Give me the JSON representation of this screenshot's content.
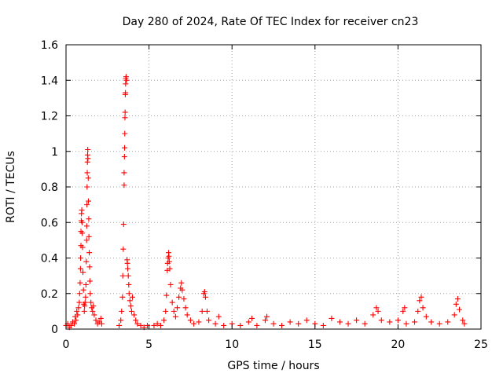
{
  "chart_data": {
    "type": "scatter",
    "title": "Day 280 of 2024, Rate Of TEC Index for receiver cn23",
    "xlabel": "GPS time / hours",
    "ylabel": "ROTI / TECUs",
    "xlim": [
      0,
      25
    ],
    "ylim": [
      0,
      1.6
    ],
    "xticks": [
      0,
      5,
      10,
      15,
      20,
      25
    ],
    "yticks": [
      0,
      0.2,
      0.4,
      0.6,
      0.8,
      1,
      1.2,
      1.4,
      1.6
    ],
    "xtick_labels": [
      "0",
      "5",
      "10",
      "15",
      "20",
      "25"
    ],
    "ytick_labels": [
      "0",
      "0.2",
      "0.4",
      "0.6",
      "0.8",
      "1",
      "1.2",
      "1.4",
      "1.6"
    ],
    "grid": true,
    "legend": "none",
    "marker": "plus",
    "color": "#ff0000",
    "series": [
      {
        "points": [
          [
            0.0,
            0.02
          ],
          [
            0.1,
            0.03
          ],
          [
            0.2,
            0.01
          ],
          [
            0.3,
            0.02
          ],
          [
            0.4,
            0.04
          ],
          [
            0.5,
            0.03
          ],
          [
            0.55,
            0.07
          ],
          [
            0.6,
            0.05
          ],
          [
            0.65,
            0.1
          ],
          [
            0.7,
            0.08
          ],
          [
            0.75,
            0.12
          ],
          [
            0.8,
            0.15
          ],
          [
            0.82,
            0.2
          ],
          [
            0.85,
            0.26
          ],
          [
            0.87,
            0.34
          ],
          [
            0.88,
            0.4
          ],
          [
            0.9,
            0.47
          ],
          [
            0.9,
            0.55
          ],
          [
            0.92,
            0.61
          ],
          [
            0.93,
            0.65
          ],
          [
            0.95,
            0.67
          ],
          [
            0.97,
            0.6
          ],
          [
            0.98,
            0.54
          ],
          [
            1.0,
            0.46
          ],
          [
            1.02,
            0.32
          ],
          [
            1.05,
            0.22
          ],
          [
            1.08,
            0.14
          ],
          [
            1.1,
            0.1
          ],
          [
            1.12,
            0.13
          ],
          [
            1.15,
            0.15
          ],
          [
            1.18,
            0.18
          ],
          [
            1.2,
            0.25
          ],
          [
            1.22,
            0.38
          ],
          [
            1.24,
            0.5
          ],
          [
            1.25,
            0.58
          ],
          [
            1.26,
            0.7
          ],
          [
            1.27,
            0.8
          ],
          [
            1.28,
            0.88
          ],
          [
            1.29,
            0.94
          ],
          [
            1.3,
            0.98
          ],
          [
            1.31,
            1.01
          ],
          [
            1.32,
            0.96
          ],
          [
            1.34,
            0.85
          ],
          [
            1.35,
            0.72
          ],
          [
            1.37,
            0.62
          ],
          [
            1.38,
            0.52
          ],
          [
            1.4,
            0.43
          ],
          [
            1.42,
            0.35
          ],
          [
            1.44,
            0.27
          ],
          [
            1.46,
            0.2
          ],
          [
            1.5,
            0.15
          ],
          [
            1.55,
            0.12
          ],
          [
            1.6,
            0.1
          ],
          [
            1.65,
            0.13
          ],
          [
            1.7,
            0.08
          ],
          [
            1.8,
            0.05
          ],
          [
            1.9,
            0.03
          ],
          [
            2.0,
            0.04
          ],
          [
            2.1,
            0.06
          ],
          [
            2.15,
            0.03
          ],
          [
            3.2,
            0.02
          ],
          [
            3.3,
            0.05
          ],
          [
            3.35,
            0.1
          ],
          [
            3.4,
            0.18
          ],
          [
            3.42,
            0.3
          ],
          [
            3.45,
            0.45
          ],
          [
            3.47,
            0.59
          ],
          [
            3.5,
            0.81
          ],
          [
            3.5,
            0.88
          ],
          [
            3.52,
            0.97
          ],
          [
            3.53,
            1.02
          ],
          [
            3.54,
            1.1
          ],
          [
            3.55,
            1.19
          ],
          [
            3.56,
            1.22
          ],
          [
            3.57,
            1.32
          ],
          [
            3.58,
            1.33
          ],
          [
            3.59,
            1.38
          ],
          [
            3.6,
            1.41
          ],
          [
            3.62,
            1.42
          ],
          [
            3.65,
            1.4
          ],
          [
            3.68,
            0.39
          ],
          [
            3.7,
            0.37
          ],
          [
            3.72,
            0.34
          ],
          [
            3.75,
            0.3
          ],
          [
            3.78,
            0.25
          ],
          [
            3.8,
            0.2
          ],
          [
            3.85,
            0.16
          ],
          [
            3.9,
            0.13
          ],
          [
            3.95,
            0.1
          ],
          [
            4.0,
            0.18
          ],
          [
            4.1,
            0.08
          ],
          [
            4.2,
            0.05
          ],
          [
            4.3,
            0.03
          ],
          [
            4.5,
            0.02
          ],
          [
            4.7,
            0.01
          ],
          [
            4.9,
            0.02
          ],
          [
            5.3,
            0.02
          ],
          [
            5.5,
            0.03
          ],
          [
            5.7,
            0.02
          ],
          [
            5.9,
            0.05
          ],
          [
            6.0,
            0.1
          ],
          [
            6.05,
            0.19
          ],
          [
            6.1,
            0.33
          ],
          [
            6.12,
            0.37
          ],
          [
            6.15,
            0.4
          ],
          [
            6.18,
            0.43
          ],
          [
            6.2,
            0.41
          ],
          [
            6.22,
            0.38
          ],
          [
            6.25,
            0.34
          ],
          [
            6.3,
            0.25
          ],
          [
            6.4,
            0.15
          ],
          [
            6.5,
            0.1
          ],
          [
            6.6,
            0.07
          ],
          [
            6.7,
            0.12
          ],
          [
            6.8,
            0.18
          ],
          [
            6.9,
            0.23
          ],
          [
            6.95,
            0.26
          ],
          [
            7.0,
            0.22
          ],
          [
            7.1,
            0.17
          ],
          [
            7.2,
            0.12
          ],
          [
            7.3,
            0.08
          ],
          [
            7.5,
            0.05
          ],
          [
            7.7,
            0.03
          ],
          [
            8.0,
            0.04
          ],
          [
            8.2,
            0.1
          ],
          [
            8.3,
            0.2
          ],
          [
            8.35,
            0.21
          ],
          [
            8.4,
            0.18
          ],
          [
            8.5,
            0.1
          ],
          [
            8.6,
            0.05
          ],
          [
            9.0,
            0.03
          ],
          [
            9.2,
            0.07
          ],
          [
            9.5,
            0.02
          ],
          [
            10.0,
            0.03
          ],
          [
            10.5,
            0.02
          ],
          [
            11.0,
            0.04
          ],
          [
            11.2,
            0.06
          ],
          [
            11.5,
            0.02
          ],
          [
            12.0,
            0.05
          ],
          [
            12.1,
            0.07
          ],
          [
            12.5,
            0.03
          ],
          [
            13.0,
            0.02
          ],
          [
            13.5,
            0.04
          ],
          [
            14.0,
            0.03
          ],
          [
            14.5,
            0.05
          ],
          [
            15.0,
            0.03
          ],
          [
            15.5,
            0.02
          ],
          [
            16.0,
            0.06
          ],
          [
            16.5,
            0.04
          ],
          [
            17.0,
            0.03
          ],
          [
            17.5,
            0.05
          ],
          [
            18.0,
            0.03
          ],
          [
            18.5,
            0.08
          ],
          [
            18.7,
            0.12
          ],
          [
            18.8,
            0.1
          ],
          [
            19.0,
            0.05
          ],
          [
            19.5,
            0.04
          ],
          [
            20.0,
            0.05
          ],
          [
            20.3,
            0.1
          ],
          [
            20.4,
            0.12
          ],
          [
            20.5,
            0.03
          ],
          [
            21.0,
            0.04
          ],
          [
            21.2,
            0.1
          ],
          [
            21.3,
            0.16
          ],
          [
            21.4,
            0.18
          ],
          [
            21.5,
            0.12
          ],
          [
            21.7,
            0.07
          ],
          [
            22.0,
            0.04
          ],
          [
            22.5,
            0.03
          ],
          [
            23.0,
            0.04
          ],
          [
            23.4,
            0.08
          ],
          [
            23.5,
            0.14
          ],
          [
            23.6,
            0.17
          ],
          [
            23.7,
            0.11
          ],
          [
            23.9,
            0.05
          ],
          [
            24.0,
            0.03
          ]
        ]
      }
    ]
  }
}
